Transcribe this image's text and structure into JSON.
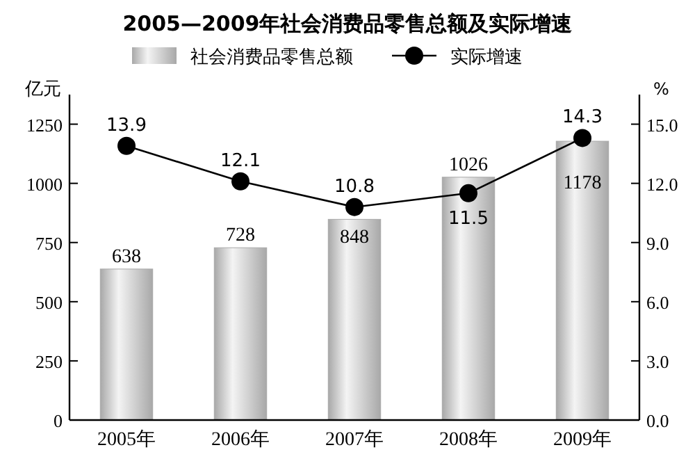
{
  "chart_data": {
    "type": "bar",
    "title": "2005—2009年社会消费品零售总额及实际增速",
    "ylabel": "亿元",
    "y2label": "%",
    "categories": [
      "2005年",
      "2006年",
      "2007年",
      "2008年",
      "2009年"
    ],
    "series": [
      {
        "name": "社会消费品零售总额",
        "color": "#a8a8a8",
        "values": [
          638,
          728,
          848,
          1026,
          1178
        ]
      },
      {
        "name": "实际增速",
        "type": "line",
        "axis": "y2",
        "color": "#000000",
        "marker": "circle",
        "values": [
          13.9,
          12.1,
          10.8,
          11.5,
          14.3
        ]
      }
    ],
    "ylim": [
      0,
      1375
    ],
    "yticks": [
      0,
      250,
      500,
      750,
      1000,
      1250
    ],
    "y2lim": [
      0,
      16.5
    ],
    "y2ticks": [
      {
        "value": 0,
        "label": "0.0"
      },
      {
        "value": 3,
        "label": "3.0"
      },
      {
        "value": 6,
        "label": "6.0"
      },
      {
        "value": 9,
        "label": "9.0"
      },
      {
        "value": 12,
        "label": "12.0"
      },
      {
        "value": 15,
        "label": "15.0"
      }
    ],
    "data_labels": true,
    "legend": "top",
    "grid": false
  }
}
